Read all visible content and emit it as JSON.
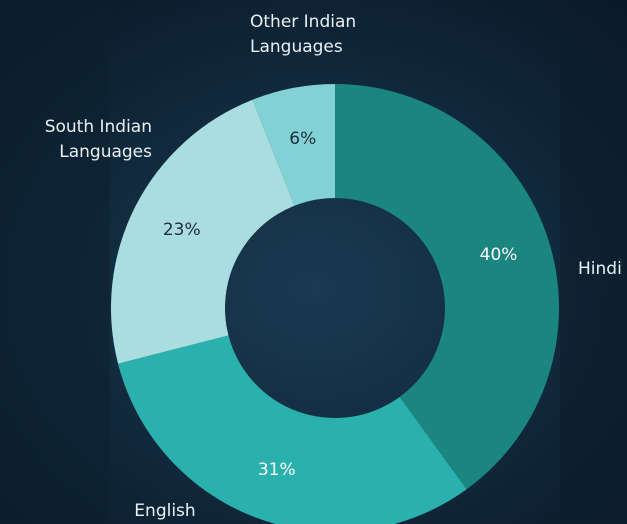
{
  "chart_data": {
    "type": "pie",
    "categories": [
      "Hindi",
      "English",
      "South Indian Languages",
      "Other Indian Languages"
    ],
    "values": [
      40,
      31,
      23,
      6
    ],
    "value_labels": [
      "40%",
      "31%",
      "23%",
      "6%"
    ],
    "colors": [
      "#1b8580",
      "#2ab1ad",
      "#a9dde0",
      "#82d2d5"
    ],
    "label_colors": [
      "#ffffff",
      "#ffffff",
      "#1e2e3a",
      "#1e2e3a"
    ],
    "donut": true
  }
}
